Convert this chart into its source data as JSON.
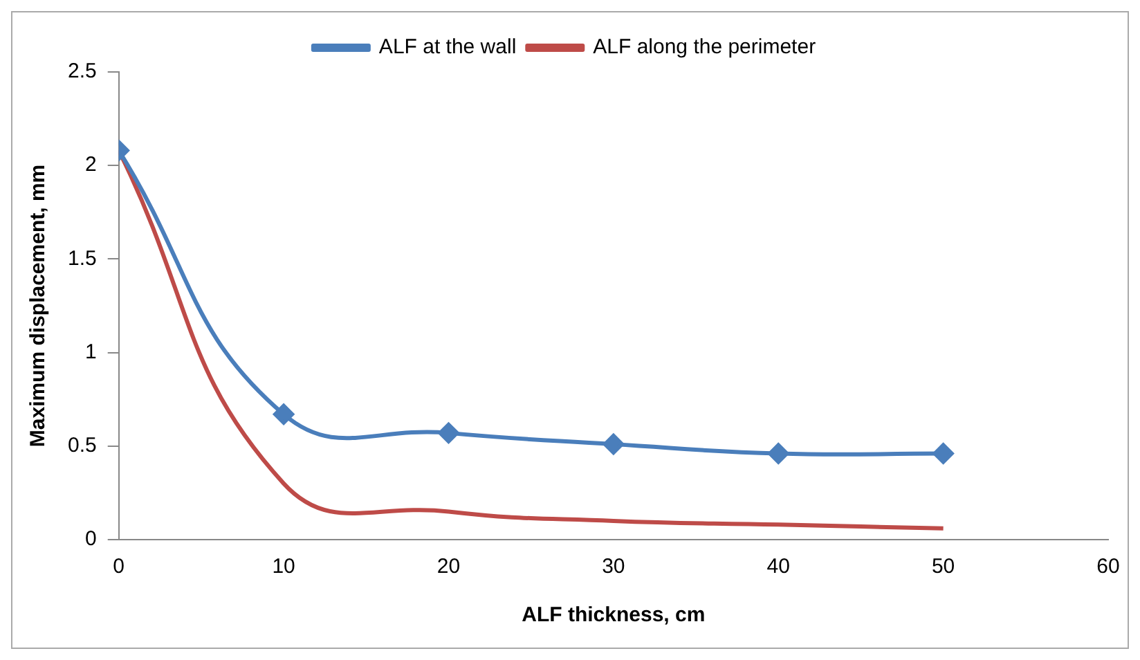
{
  "chart_data": {
    "type": "line",
    "xlabel": "ALF thickness, cm",
    "ylabel": "Maximum displacement, mm",
    "x": [
      0,
      10,
      20,
      30,
      40,
      50
    ],
    "series": [
      {
        "name": "ALF at the wall",
        "color": "#4a7ebb",
        "values": [
          2.08,
          0.67,
          0.57,
          0.51,
          0.46,
          0.46
        ],
        "marker": "diamond"
      },
      {
        "name": "ALF along the perimeter",
        "color": "#be4b48",
        "values": [
          2.08,
          0.3,
          0.15,
          0.1,
          0.08,
          0.06
        ],
        "marker": "none"
      }
    ],
    "xlim": [
      0,
      60
    ],
    "xticks": [
      0,
      10,
      20,
      30,
      40,
      50,
      60
    ],
    "ylim": [
      0,
      2.5
    ],
    "yticks": [
      0,
      0.5,
      1,
      1.5,
      2,
      2.5
    ],
    "grid": false,
    "legend": "top"
  }
}
